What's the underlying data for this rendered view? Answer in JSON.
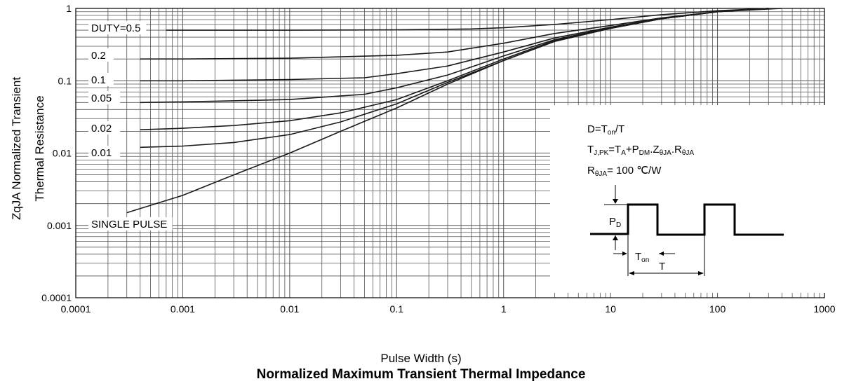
{
  "chart_data": {
    "type": "line",
    "title": "Normalized Maximum Transient Thermal Impedance",
    "xlabel": "Pulse Width (s)",
    "ylabel_line1": "ZqJA Normalized Transient",
    "ylabel_line2": "Thermal Resistance",
    "x_scale": "log",
    "y_scale": "log",
    "xlim": [
      0.0001,
      1000
    ],
    "ylim": [
      0.0001,
      1
    ],
    "x_ticks": [
      "0.0001",
      "0.001",
      "0.01",
      "0.1",
      "1",
      "10",
      "100",
      "1000"
    ],
    "y_ticks": [
      "1",
      "0.1",
      "0.01",
      "0.001",
      "0.0001"
    ],
    "grid": true,
    "series": [
      {
        "name": "DUTY=0.5",
        "points": [
          [
            0.0007,
            0.5
          ],
          [
            0.01,
            0.5
          ],
          [
            0.1,
            0.505
          ],
          [
            0.5,
            0.52
          ],
          [
            1,
            0.54
          ],
          [
            3,
            0.6
          ],
          [
            10,
            0.7
          ],
          [
            30,
            0.82
          ],
          [
            100,
            0.93
          ],
          [
            300,
            1.0
          ]
        ]
      },
      {
        "name": "0.2",
        "points": [
          [
            0.0004,
            0.2
          ],
          [
            0.001,
            0.2
          ],
          [
            0.01,
            0.205
          ],
          [
            0.1,
            0.225
          ],
          [
            0.3,
            0.25
          ],
          [
            1,
            0.33
          ],
          [
            3,
            0.45
          ],
          [
            10,
            0.58
          ],
          [
            30,
            0.74
          ],
          [
            100,
            0.9
          ],
          [
            300,
            1.0
          ]
        ]
      },
      {
        "name": "0.1",
        "points": [
          [
            0.0004,
            0.1
          ],
          [
            0.001,
            0.1
          ],
          [
            0.01,
            0.104
          ],
          [
            0.05,
            0.11
          ],
          [
            0.1,
            0.125
          ],
          [
            0.3,
            0.16
          ],
          [
            1,
            0.25
          ],
          [
            3,
            0.39
          ],
          [
            10,
            0.55
          ],
          [
            30,
            0.73
          ],
          [
            100,
            0.9
          ],
          [
            300,
            1.0
          ]
        ]
      },
      {
        "name": "0.05",
        "points": [
          [
            0.0004,
            0.05
          ],
          [
            0.001,
            0.051
          ],
          [
            0.01,
            0.055
          ],
          [
            0.05,
            0.065
          ],
          [
            0.1,
            0.08
          ],
          [
            0.3,
            0.12
          ],
          [
            1,
            0.22
          ],
          [
            3,
            0.37
          ],
          [
            10,
            0.54
          ],
          [
            30,
            0.72
          ],
          [
            100,
            0.9
          ],
          [
            300,
            1.0
          ]
        ]
      },
      {
        "name": "0.02",
        "points": [
          [
            0.0004,
            0.021
          ],
          [
            0.001,
            0.022
          ],
          [
            0.003,
            0.024
          ],
          [
            0.01,
            0.028
          ],
          [
            0.03,
            0.036
          ],
          [
            0.1,
            0.055
          ],
          [
            0.3,
            0.1
          ],
          [
            1,
            0.2
          ],
          [
            3,
            0.36
          ],
          [
            10,
            0.53
          ],
          [
            30,
            0.72
          ],
          [
            100,
            0.9
          ],
          [
            300,
            1.0
          ]
        ]
      },
      {
        "name": "0.01",
        "points": [
          [
            0.0004,
            0.012
          ],
          [
            0.001,
            0.0125
          ],
          [
            0.003,
            0.014
          ],
          [
            0.01,
            0.018
          ],
          [
            0.03,
            0.027
          ],
          [
            0.1,
            0.048
          ],
          [
            0.3,
            0.095
          ],
          [
            1,
            0.19
          ],
          [
            3,
            0.35
          ],
          [
            10,
            0.53
          ],
          [
            30,
            0.72
          ],
          [
            100,
            0.9
          ],
          [
            300,
            1.0
          ]
        ]
      },
      {
        "name": "SINGLE PULSE",
        "points": [
          [
            0.0003,
            0.0015
          ],
          [
            0.001,
            0.0026
          ],
          [
            0.003,
            0.005
          ],
          [
            0.01,
            0.01
          ],
          [
            0.03,
            0.02
          ],
          [
            0.1,
            0.042
          ],
          [
            0.3,
            0.09
          ],
          [
            1,
            0.19
          ],
          [
            3,
            0.35
          ],
          [
            10,
            0.53
          ],
          [
            30,
            0.72
          ],
          [
            100,
            0.9
          ],
          [
            400,
            1.0
          ]
        ]
      }
    ]
  },
  "inset": {
    "eq1": {
      "a": "D=T",
      "a_sub": "on",
      "b": "/T"
    },
    "eq2": {
      "a": "T",
      "a_sub": "J,PK",
      "b": "=T",
      "b_sub": "A",
      "c": "+P",
      "c_sub": "DM",
      "d": ".Z",
      "d_sub": "θJA",
      "e": ".R",
      "e_sub": "θJA"
    },
    "eq3": {
      "a": "R",
      "a_sub": "θJA",
      "b": "= 100 ℃/W"
    },
    "pd_label": "P",
    "pd_sub": "D",
    "ton_label": "T",
    "ton_sub": "on",
    "t_label": "T"
  }
}
